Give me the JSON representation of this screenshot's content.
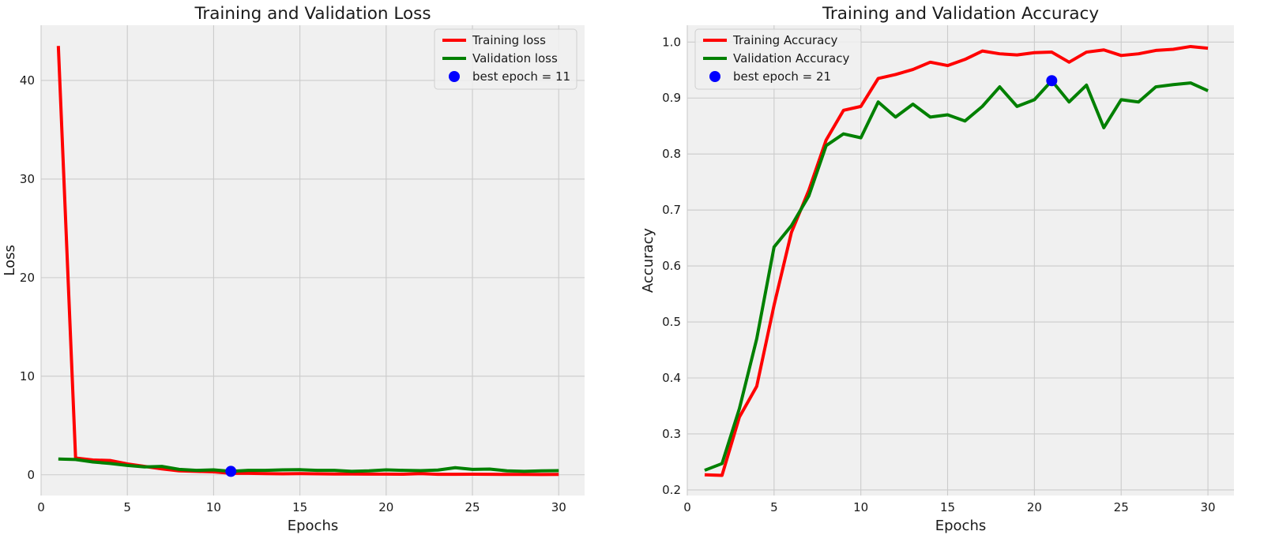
{
  "chart_data": [
    {
      "type": "line",
      "title": "Training and Validation Loss",
      "xlabel": "Epochs",
      "ylabel": "Loss",
      "xlim": [
        0,
        31.5
      ],
      "ylim": [
        -2.1,
        45.6
      ],
      "xticks": [
        0,
        5,
        10,
        15,
        20,
        25,
        30
      ],
      "yticks": [
        0,
        10,
        20,
        30,
        40
      ],
      "xtick_labels": [
        "0",
        "5",
        "10",
        "15",
        "20",
        "25",
        "30"
      ],
      "ytick_labels": [
        "0",
        "10",
        "20",
        "30",
        "40"
      ],
      "grid": true,
      "legend_position": "top-right",
      "x": [
        1,
        2,
        3,
        4,
        5,
        6,
        7,
        8,
        9,
        10,
        11,
        12,
        13,
        14,
        15,
        16,
        17,
        18,
        19,
        20,
        21,
        22,
        23,
        24,
        25,
        26,
        27,
        28,
        29,
        30
      ],
      "series": [
        {
          "name": "Training loss",
          "color": "#ff0000",
          "values": [
            43.5,
            1.7,
            1.5,
            1.45,
            1.1,
            0.85,
            0.6,
            0.4,
            0.35,
            0.3,
            0.15,
            0.15,
            0.12,
            0.1,
            0.12,
            0.1,
            0.08,
            0.08,
            0.07,
            0.07,
            0.06,
            0.12,
            0.05,
            0.05,
            0.06,
            0.05,
            0.04,
            0.04,
            0.03,
            0.04
          ]
        },
        {
          "name": "Validation loss",
          "color": "#008000",
          "values": [
            1.6,
            1.55,
            1.3,
            1.15,
            0.95,
            0.8,
            0.85,
            0.55,
            0.45,
            0.5,
            0.35,
            0.45,
            0.45,
            0.5,
            0.52,
            0.45,
            0.45,
            0.35,
            0.4,
            0.5,
            0.45,
            0.42,
            0.48,
            0.72,
            0.55,
            0.58,
            0.4,
            0.35,
            0.4,
            0.42
          ]
        }
      ],
      "best_point": {
        "label": "best epoch = 11",
        "x": 11,
        "y": 0.35,
        "color": "#0000ff"
      }
    },
    {
      "type": "line",
      "title": "Training and Validation Accuracy",
      "xlabel": "Epochs",
      "ylabel": "Accuracy",
      "xlim": [
        0,
        31.5
      ],
      "ylim": [
        0.19,
        1.03
      ],
      "xticks": [
        0,
        5,
        10,
        15,
        20,
        25,
        30
      ],
      "yticks": [
        0.2,
        0.3,
        0.4,
        0.5,
        0.6,
        0.7,
        0.8,
        0.9,
        1.0
      ],
      "xtick_labels": [
        "0",
        "5",
        "10",
        "15",
        "20",
        "25",
        "30"
      ],
      "ytick_labels": [
        "0.2",
        "0.3",
        "0.4",
        "0.5",
        "0.6",
        "0.7",
        "0.8",
        "0.9",
        "1.0"
      ],
      "grid": true,
      "legend_position": "top-left",
      "x": [
        1,
        2,
        3,
        4,
        5,
        6,
        7,
        8,
        9,
        10,
        11,
        12,
        13,
        14,
        15,
        16,
        17,
        18,
        19,
        20,
        21,
        22,
        23,
        24,
        25,
        26,
        27,
        28,
        29,
        30
      ],
      "series": [
        {
          "name": "Training Accuracy",
          "color": "#ff0000",
          "values": [
            0.227,
            0.226,
            0.33,
            0.385,
            0.53,
            0.66,
            0.735,
            0.825,
            0.878,
            0.885,
            0.935,
            0.942,
            0.951,
            0.964,
            0.958,
            0.969,
            0.984,
            0.979,
            0.977,
            0.981,
            0.982,
            0.964,
            0.982,
            0.986,
            0.976,
            0.979,
            0.985,
            0.987,
            0.992,
            0.989
          ]
        },
        {
          "name": "Validation Accuracy",
          "color": "#008000",
          "values": [
            0.235,
            0.247,
            0.345,
            0.47,
            0.634,
            0.672,
            0.725,
            0.815,
            0.836,
            0.829,
            0.893,
            0.866,
            0.889,
            0.866,
            0.87,
            0.859,
            0.885,
            0.92,
            0.885,
            0.897,
            0.931,
            0.893,
            0.923,
            0.847,
            0.897,
            0.893,
            0.92,
            0.924,
            0.927,
            0.913
          ]
        }
      ],
      "best_point": {
        "label": "best epoch = 21",
        "x": 21,
        "y": 0.931,
        "color": "#0000ff"
      }
    }
  ]
}
